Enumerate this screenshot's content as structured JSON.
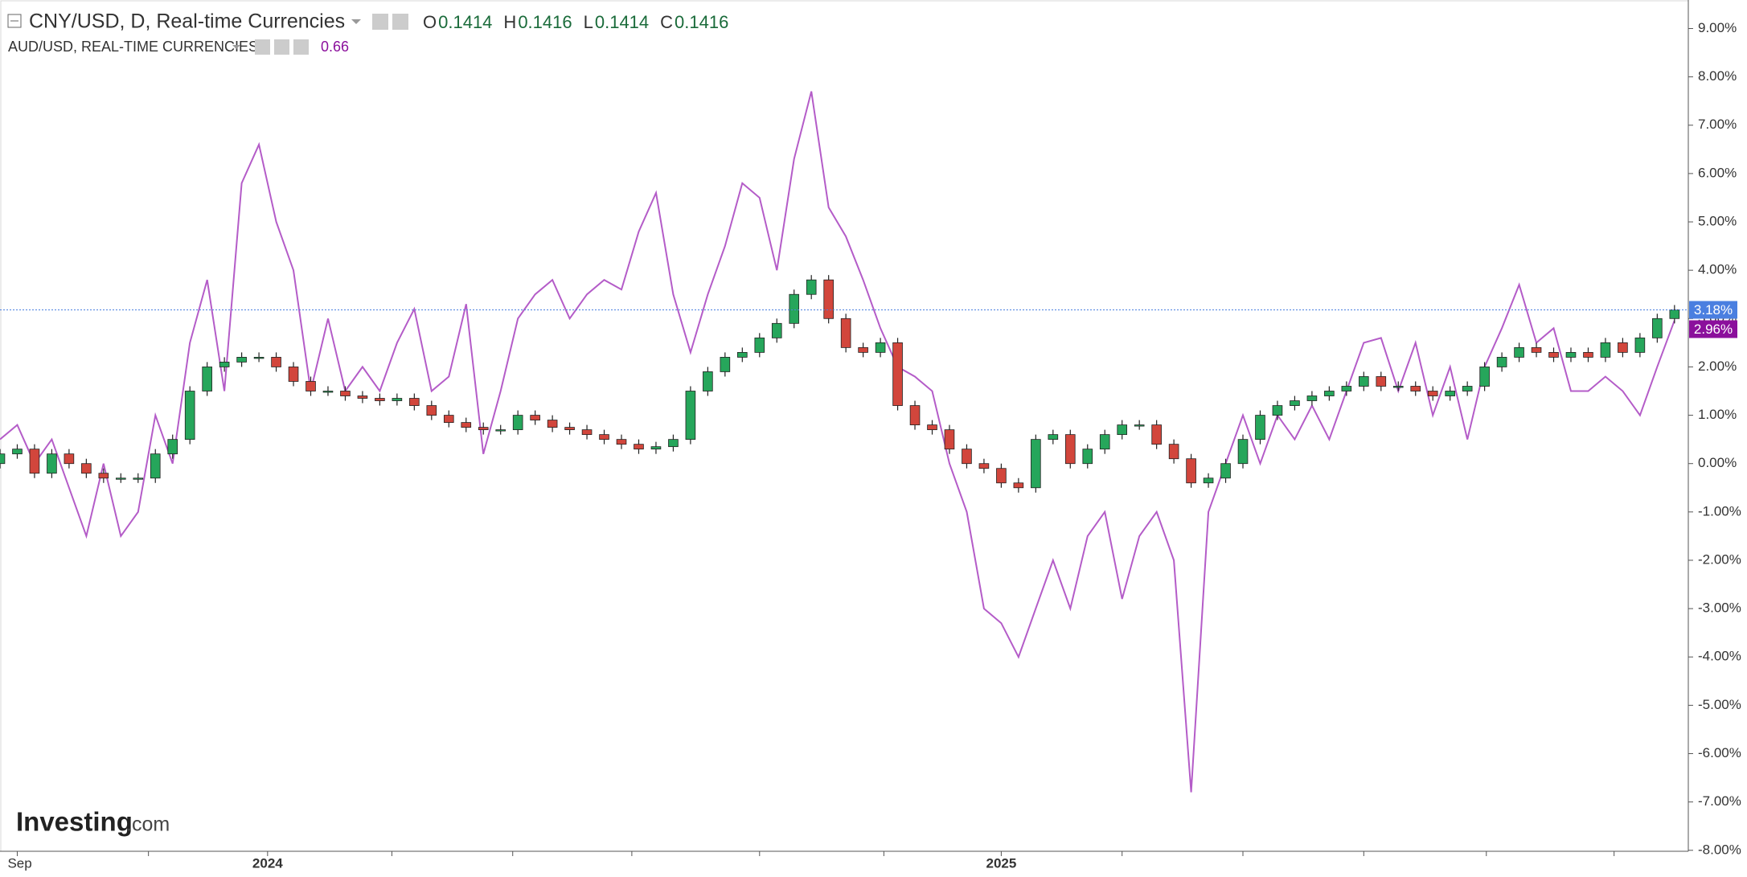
{
  "chart_data": {
    "type": "candlestick",
    "title": "CNY/USD, D, Real-time Currencies",
    "ohlc_header": [
      {
        "label": "O",
        "value": 0.1414
      },
      {
        "label": "H",
        "value": 0.1416
      },
      {
        "label": "L",
        "value": 0.1414
      },
      {
        "label": "C",
        "value": 0.1416
      }
    ],
    "compare_title": "AUD/USD, REAL-TIME CURRENCIES",
    "compare_value": 0.66,
    "watermark": "Investing",
    "watermark_suffix": ".com",
    "xlim": [
      0,
      97.8
    ],
    "xticks": [
      {
        "value": 1,
        "label": "Sep"
      },
      {
        "value": 8.6,
        "label": null
      },
      {
        "value": 15.5,
        "label": "2024"
      },
      {
        "value": 22.7,
        "label": null
      },
      {
        "value": 29.7,
        "label": null
      },
      {
        "value": 36.6,
        "label": null
      },
      {
        "value": 44,
        "label": null
      },
      {
        "value": 51.2,
        "label": null
      },
      {
        "value": 58,
        "label": "2025"
      },
      {
        "value": 65,
        "label": null
      },
      {
        "value": 72,
        "label": null
      },
      {
        "value": 79,
        "label": null
      },
      {
        "value": 86.1,
        "label": null
      },
      {
        "value": 93.5,
        "label": null
      }
    ],
    "ylim": [
      -8.02,
      9.59
    ],
    "yticks": [
      {
        "value": -8,
        "label": "-8.00%"
      },
      {
        "value": -7,
        "label": "-7.00%"
      },
      {
        "value": -6,
        "label": "-6.00%"
      },
      {
        "value": -5,
        "label": "-5.00%"
      },
      {
        "value": -4,
        "label": "-4.00%"
      },
      {
        "value": -3,
        "label": "-3.00%"
      },
      {
        "value": -2,
        "label": "-2.00%"
      },
      {
        "value": -1,
        "label": "-1.00%"
      },
      {
        "value": 0,
        "label": "0.00%"
      },
      {
        "value": 1,
        "label": "1.00%"
      },
      {
        "value": 2,
        "label": "2.00%"
      },
      {
        "value": 3,
        "label": "3.00%"
      },
      {
        "value": 4,
        "label": "4.00%"
      },
      {
        "value": 5,
        "label": "5.00%"
      },
      {
        "value": 6,
        "label": "6.00%"
      },
      {
        "value": 7,
        "label": "7.00%"
      },
      {
        "value": 8,
        "label": "8.00%"
      },
      {
        "value": 9,
        "label": "9.00%"
      }
    ],
    "x": [
      0,
      1,
      2,
      3,
      4,
      5,
      6,
      7,
      8,
      9,
      10,
      11,
      12,
      13,
      14,
      15,
      16,
      17,
      18,
      19,
      20,
      21,
      22,
      23,
      24,
      25,
      26,
      27,
      28,
      29,
      30,
      31,
      32,
      33,
      34,
      35,
      36,
      37,
      38,
      39,
      40,
      41,
      42,
      43,
      44,
      45,
      46,
      47,
      48,
      49,
      50,
      51,
      52,
      53,
      54,
      55,
      56,
      57,
      58,
      59,
      60,
      61,
      62,
      63,
      64,
      65,
      66,
      67,
      68,
      69,
      70,
      71,
      72,
      73,
      74,
      75,
      76,
      77,
      78,
      79,
      80,
      81,
      82,
      83,
      84,
      85,
      86,
      87,
      88,
      89,
      90,
      91,
      92,
      93,
      94,
      95,
      96,
      97
    ],
    "candles": {
      "name": "CNY/USD",
      "up_color": "#26a65b",
      "down_color": "#d2463c",
      "last_value_label": "3.18%",
      "last_color": "#4a7fe0",
      "open": [
        0.0,
        0.2,
        0.3,
        -0.2,
        0.2,
        0.0,
        -0.2,
        -0.3,
        -0.3,
        -0.3,
        0.2,
        0.5,
        1.5,
        2.0,
        2.1,
        2.2,
        2.2,
        2.0,
        1.7,
        1.5,
        1.5,
        1.4,
        1.35,
        1.3,
        1.35,
        1.2,
        1.0,
        0.85,
        0.75,
        0.7,
        0.7,
        1.0,
        0.9,
        0.75,
        0.7,
        0.6,
        0.5,
        0.4,
        0.3,
        0.35,
        0.5,
        1.5,
        1.9,
        2.2,
        2.3,
        2.6,
        2.9,
        3.5,
        3.8,
        3.0,
        2.4,
        2.3,
        2.5,
        1.2,
        0.8,
        0.7,
        0.3,
        0.0,
        -0.1,
        -0.4,
        -0.5,
        0.5,
        0.6,
        0.0,
        0.3,
        0.6,
        0.8,
        0.8,
        0.4,
        0.1,
        -0.4,
        -0.3,
        0.0,
        0.5,
        1.0,
        1.2,
        1.3,
        1.4,
        1.5,
        1.6,
        1.8,
        1.6,
        1.6,
        1.5,
        1.4,
        1.5,
        1.6,
        2.0,
        2.2,
        2.4,
        2.3,
        2.2,
        2.3,
        2.2,
        2.5,
        2.3,
        2.6,
        3.0
      ],
      "high": [
        0.3,
        0.4,
        0.4,
        0.3,
        0.3,
        0.1,
        -0.1,
        -0.2,
        -0.2,
        0.3,
        0.6,
        1.6,
        2.1,
        2.2,
        2.3,
        2.3,
        2.3,
        2.1,
        1.8,
        1.6,
        1.6,
        1.5,
        1.45,
        1.45,
        1.45,
        1.3,
        1.1,
        0.95,
        0.85,
        0.8,
        1.1,
        1.1,
        1.0,
        0.85,
        0.8,
        0.7,
        0.6,
        0.5,
        0.45,
        0.6,
        1.6,
        2.0,
        2.3,
        2.4,
        2.7,
        3.0,
        3.6,
        3.9,
        3.9,
        3.1,
        2.5,
        2.6,
        2.6,
        1.3,
        0.9,
        0.8,
        0.4,
        0.1,
        0.0,
        -0.3,
        0.6,
        0.7,
        0.7,
        0.4,
        0.7,
        0.9,
        0.9,
        0.9,
        0.5,
        0.2,
        -0.2,
        0.1,
        0.6,
        1.1,
        1.3,
        1.4,
        1.5,
        1.6,
        1.7,
        1.9,
        1.9,
        1.7,
        1.7,
        1.6,
        1.6,
        1.7,
        2.1,
        2.3,
        2.5,
        2.5,
        2.4,
        2.4,
        2.4,
        2.6,
        2.6,
        2.7,
        3.1,
        3.28
      ],
      "low": [
        -0.1,
        0.1,
        -0.3,
        -0.3,
        -0.1,
        -0.3,
        -0.4,
        -0.4,
        -0.4,
        -0.4,
        0.1,
        0.4,
        1.4,
        1.9,
        2.0,
        2.1,
        1.9,
        1.6,
        1.4,
        1.4,
        1.3,
        1.25,
        1.2,
        1.2,
        1.1,
        0.9,
        0.75,
        0.65,
        0.6,
        0.6,
        0.6,
        0.8,
        0.65,
        0.6,
        0.5,
        0.4,
        0.3,
        0.2,
        0.2,
        0.25,
        0.4,
        1.4,
        1.8,
        2.1,
        2.2,
        2.5,
        2.8,
        3.4,
        2.9,
        2.3,
        2.2,
        2.2,
        1.1,
        0.7,
        0.6,
        0.2,
        -0.1,
        -0.2,
        -0.5,
        -0.6,
        -0.6,
        0.4,
        -0.1,
        -0.1,
        0.2,
        0.5,
        0.7,
        0.3,
        0.0,
        -0.5,
        -0.5,
        -0.4,
        -0.1,
        0.4,
        0.9,
        1.1,
        1.2,
        1.3,
        1.4,
        1.5,
        1.5,
        1.5,
        1.4,
        1.3,
        1.3,
        1.4,
        1.5,
        1.9,
        2.1,
        2.2,
        2.1,
        2.1,
        2.1,
        2.1,
        2.2,
        2.2,
        2.5,
        2.9
      ],
      "close": [
        0.2,
        0.3,
        -0.2,
        0.2,
        0.0,
        -0.2,
        -0.3,
        -0.3,
        -0.3,
        0.2,
        0.5,
        1.5,
        2.0,
        2.1,
        2.2,
        2.2,
        2.0,
        1.7,
        1.5,
        1.5,
        1.4,
        1.35,
        1.3,
        1.35,
        1.2,
        1.0,
        0.85,
        0.75,
        0.7,
        0.7,
        1.0,
        0.9,
        0.75,
        0.7,
        0.6,
        0.5,
        0.4,
        0.3,
        0.35,
        0.5,
        1.5,
        1.9,
        2.2,
        2.3,
        2.6,
        2.9,
        3.5,
        3.8,
        3.0,
        2.4,
        2.3,
        2.5,
        1.2,
        0.8,
        0.7,
        0.3,
        0.0,
        -0.1,
        -0.4,
        -0.5,
        0.5,
        0.6,
        0.0,
        0.3,
        0.6,
        0.8,
        0.8,
        0.4,
        0.1,
        -0.4,
        -0.3,
        0.0,
        0.5,
        1.0,
        1.2,
        1.3,
        1.4,
        1.5,
        1.6,
        1.8,
        1.6,
        1.6,
        1.5,
        1.4,
        1.5,
        1.6,
        2.0,
        2.2,
        2.4,
        2.3,
        2.2,
        2.3,
        2.2,
        2.5,
        2.3,
        2.6,
        3.0,
        3.18
      ]
    },
    "series": [
      {
        "name": "AUD/USD",
        "color": "#b45cc8",
        "last_value_label": "2.96%",
        "last_color": "#8b0f9c",
        "values": [
          0.5,
          0.8,
          0.0,
          0.5,
          -0.5,
          -1.5,
          0.0,
          -1.5,
          -1.0,
          1.0,
          0.0,
          2.5,
          3.8,
          1.5,
          5.8,
          6.6,
          5.0,
          4.0,
          1.5,
          3.0,
          1.5,
          2.0,
          1.5,
          2.5,
          3.2,
          1.5,
          1.8,
          3.3,
          0.2,
          1.5,
          3.0,
          3.5,
          3.8,
          3.0,
          3.5,
          3.8,
          3.6,
          4.8,
          5.6,
          3.5,
          2.3,
          3.5,
          4.5,
          5.8,
          5.5,
          4.0,
          6.3,
          7.7,
          5.3,
          4.7,
          3.8,
          2.8,
          2.0,
          1.8,
          1.5,
          0.0,
          -1.0,
          -3.0,
          -3.3,
          -4.0,
          -3.0,
          -2.0,
          -3.0,
          -1.5,
          -1.0,
          -2.8,
          -1.5,
          -1.0,
          -2.0,
          -6.8,
          -1.0,
          0.0,
          1.0,
          0.0,
          1.0,
          0.5,
          1.2,
          0.5,
          1.5,
          2.5,
          2.6,
          1.5,
          2.5,
          1.0,
          2.0,
          0.5,
          2.0,
          2.8,
          3.7,
          2.5,
          2.8,
          1.5,
          1.5,
          1.8,
          1.5,
          1.0,
          2.0,
          2.96
        ]
      }
    ]
  }
}
